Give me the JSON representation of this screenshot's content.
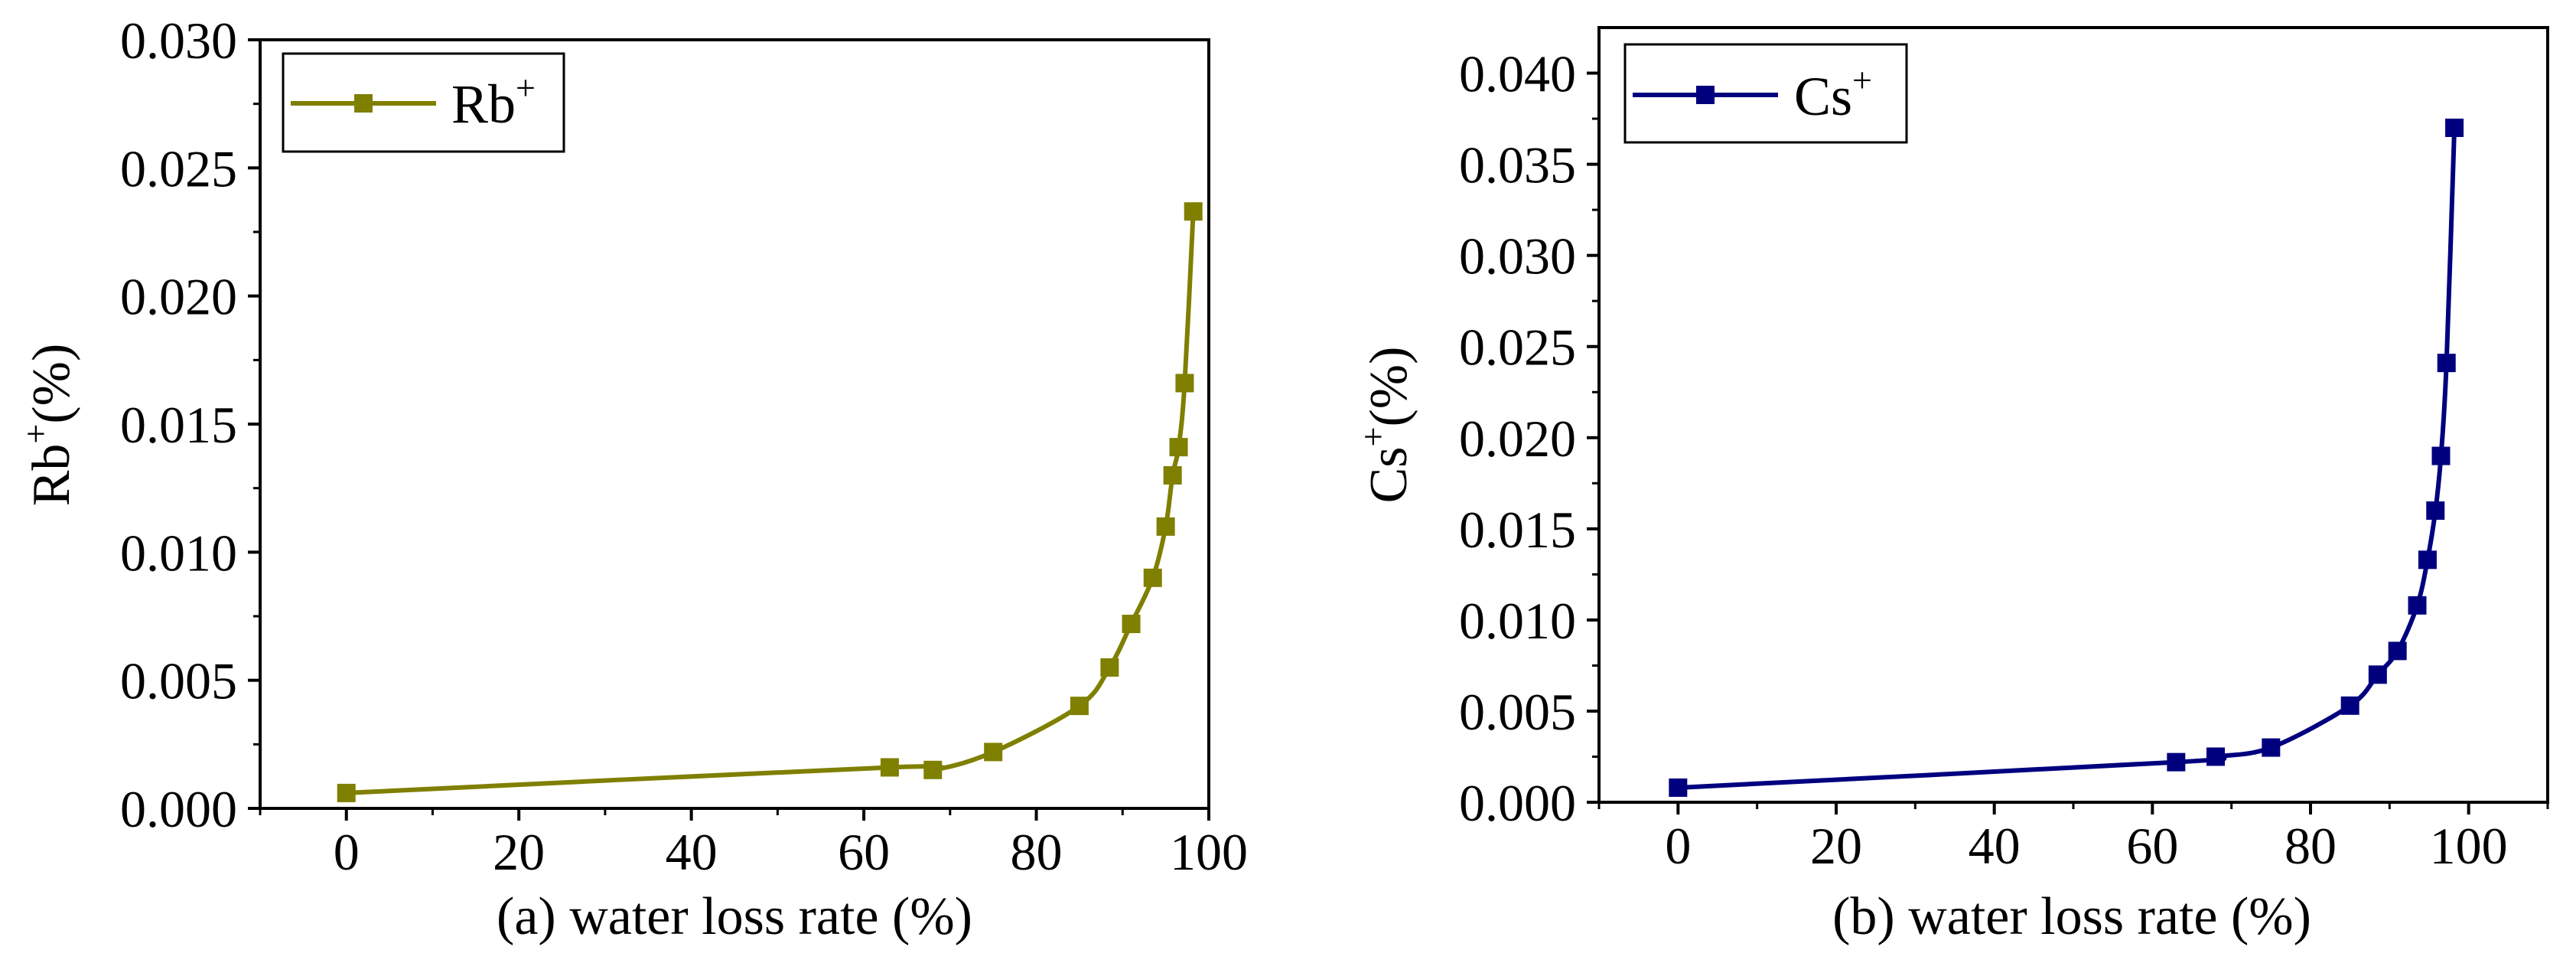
{
  "chart_data": [
    {
      "type": "line",
      "panel": "a",
      "xlabel": "(a) water loss rate (%)",
      "ylabel": "Rb+(%)",
      "ylabel_base": "Rb",
      "ylabel_sup": "+",
      "ylabel_suffix": "(%)",
      "xlim": [
        -10,
        100
      ],
      "ylim": [
        0,
        0.03
      ],
      "xticks": [
        0,
        20,
        40,
        60,
        80,
        100
      ],
      "xtick_labels": [
        "0",
        "20",
        "40",
        "60",
        "80",
        "100"
      ],
      "yticks": [
        0,
        0.005,
        0.01,
        0.015,
        0.02,
        0.025,
        0.03
      ],
      "ytick_labels": [
        "0.000",
        "0.005",
        "0.010",
        "0.015",
        "0.020",
        "0.025",
        "0.030"
      ],
      "legend": {
        "label": "Rb+",
        "base": "Rb",
        "sup": "+",
        "position": "top-left"
      },
      "color": "#7f7f00",
      "grid": false,
      "series": [
        {
          "name": "Rb+",
          "marker": "square",
          "x": [
            0,
            63,
            68,
            75,
            85,
            88.5,
            91,
            93.5,
            95,
            95.8,
            96.5,
            97.2,
            98.2
          ],
          "y": [
            0.0006,
            0.0016,
            0.0015,
            0.0022,
            0.004,
            0.0055,
            0.0072,
            0.009,
            0.011,
            0.013,
            0.0141,
            0.0166,
            0.0233
          ]
        }
      ]
    },
    {
      "type": "line",
      "panel": "b",
      "xlabel": "(b) water loss rate (%)",
      "ylabel": "Cs+(%)",
      "ylabel_base": "Cs",
      "ylabel_sup": "+",
      "ylabel_suffix": "(%)",
      "xlim": [
        -10,
        110
      ],
      "ylim": [
        0,
        0.0425
      ],
      "xticks": [
        0,
        20,
        40,
        60,
        80,
        100
      ],
      "xtick_labels": [
        "0",
        "20",
        "40",
        "60",
        "80",
        "100"
      ],
      "yticks": [
        0,
        0.005,
        0.01,
        0.015,
        0.02,
        0.025,
        0.03,
        0.035,
        0.04
      ],
      "ytick_labels": [
        "0.000",
        "0.005",
        "0.010",
        "0.015",
        "0.020",
        "0.025",
        "0.030",
        "0.035",
        "0.040"
      ],
      "legend": {
        "label": "Cs+",
        "base": "Cs",
        "sup": "+",
        "position": "top-left"
      },
      "color": "#00007f",
      "grid": false,
      "series": [
        {
          "name": "Cs+",
          "marker": "square",
          "x": [
            0,
            63,
            68,
            75,
            85,
            88.5,
            91,
            93.5,
            94.8,
            95.8,
            96.5,
            97.2,
            98.2
          ],
          "y": [
            0.0008,
            0.0022,
            0.0025,
            0.003,
            0.0053,
            0.007,
            0.0083,
            0.0108,
            0.0133,
            0.016,
            0.019,
            0.0241,
            0.037
          ]
        }
      ]
    }
  ]
}
